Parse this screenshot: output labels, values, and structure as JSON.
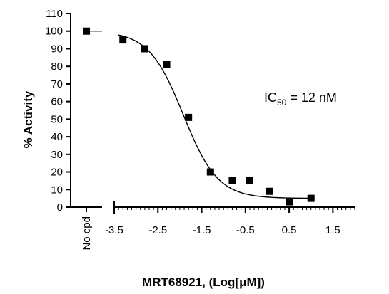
{
  "chart_data": {
    "type": "scatter",
    "title": "",
    "xlabel": "MRT68921, (Log[μM])",
    "ylabel": "% Activity",
    "ylim": [
      0,
      110
    ],
    "xlim": [
      -3.5,
      2
    ],
    "grid": false,
    "legend": "none",
    "colors": {
      "axis": "#000000",
      "marker": "#000000",
      "curve": "#000000"
    },
    "y_ticks": [
      0,
      10,
      20,
      30,
      40,
      50,
      60,
      70,
      80,
      90,
      100,
      110
    ],
    "y_tick_labels": [
      "0",
      "10",
      "20",
      "30",
      "40",
      "50",
      "60",
      "70",
      "80",
      "90",
      "100",
      "110"
    ],
    "x_ticks": [
      -3.5,
      -2.5,
      -1.5,
      -0.5,
      0.5,
      1.5
    ],
    "x_tick_labels": [
      "-3.5",
      "-2.5",
      "-1.5",
      "-0.5",
      "0.5",
      "1.5"
    ],
    "control": {
      "label": "No cpd",
      "y": 100
    },
    "series": [
      {
        "marker": "square",
        "x": [
          -3.3,
          -2.8,
          -2.3,
          -1.8,
          -1.3,
          -0.8,
          -0.4,
          0.05,
          0.5,
          1.0
        ],
        "y": [
          95,
          90,
          81,
          51,
          20,
          15,
          15,
          9,
          3,
          5
        ]
      }
    ],
    "fit": {
      "model": "four-parameter logistic",
      "top": 100,
      "bottom": 5,
      "log_ic50": -1.92,
      "hill": -1.1,
      "x_range": [
        -3.4,
        1.0
      ]
    },
    "annotation": {
      "prefix": "IC",
      "subscript": "50",
      "suffix": " = 12 nM"
    }
  }
}
